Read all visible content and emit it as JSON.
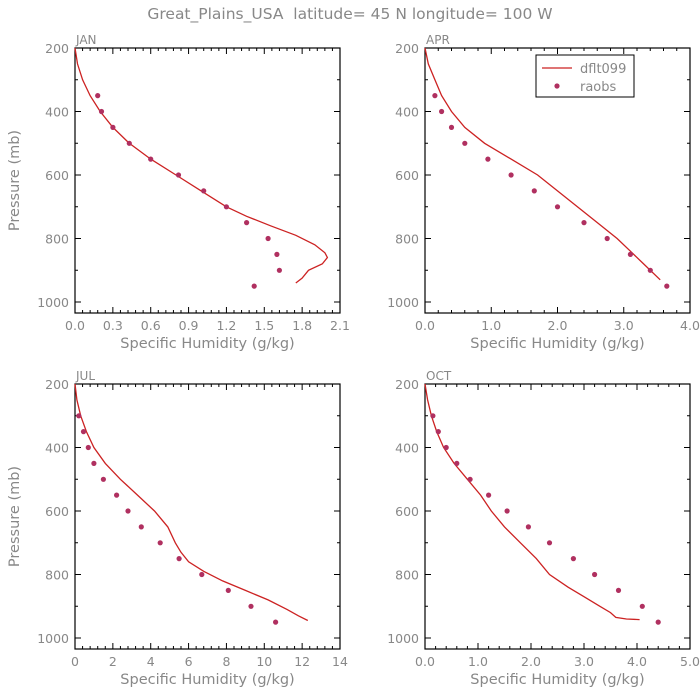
{
  "title": "Great_Plains_USA  latitude= 45 N longitude= 100 W",
  "colors": {
    "model": "#cc2222",
    "obs": "#b03060",
    "text": "#888888"
  },
  "legend": {
    "position": "top-right",
    "model_label": "dflt099",
    "obs_label": "raobs"
  },
  "chart_data": [
    {
      "type": "line",
      "panel": "JAN",
      "xlabel": "Specific Humidity (g/kg)",
      "ylabel": "Pressure (mb)",
      "xlim": [
        0,
        2.1
      ],
      "ylim": [
        1000,
        200
      ],
      "xticks": [
        "0.0",
        "0.3",
        "0.6",
        "0.9",
        "1.2",
        "1.5",
        "1.8",
        "2.1"
      ],
      "yticks": [
        "200",
        "400",
        "600",
        "800",
        "1000"
      ],
      "series": [
        {
          "name": "dflt099",
          "kind": "line",
          "x": [
            0.0,
            0.02,
            0.06,
            0.12,
            0.2,
            0.3,
            0.43,
            0.6,
            0.8,
            1.0,
            1.2,
            1.36,
            1.55,
            1.75,
            1.9,
            1.98,
            2.0,
            1.96,
            1.85,
            1.8,
            1.75
          ],
          "y": [
            200,
            250,
            300,
            350,
            400,
            450,
            500,
            550,
            600,
            650,
            700,
            730,
            760,
            790,
            820,
            845,
            860,
            880,
            900,
            925,
            940
          ]
        },
        {
          "name": "raobs",
          "kind": "scatter",
          "x": [
            0.18,
            0.21,
            0.3,
            0.43,
            0.6,
            0.82,
            1.02,
            1.2,
            1.36,
            1.53,
            1.6,
            1.62,
            1.42
          ],
          "y": [
            350,
            400,
            450,
            500,
            550,
            600,
            650,
            700,
            750,
            800,
            850,
            900,
            950
          ]
        }
      ]
    },
    {
      "type": "line",
      "panel": "APR",
      "xlabel": "Specific Humidity (g/kg)",
      "ylabel": "",
      "xlim": [
        0,
        4.0
      ],
      "ylim": [
        1000,
        200
      ],
      "xticks": [
        "0.0",
        "1.0",
        "2.0",
        "3.0",
        "4.0"
      ],
      "yticks": [
        "200",
        "400",
        "600",
        "800",
        "1000"
      ],
      "series": [
        {
          "name": "dflt099",
          "kind": "line",
          "x": [
            0.0,
            0.05,
            0.15,
            0.25,
            0.4,
            0.6,
            0.9,
            1.3,
            1.7,
            2.0,
            2.3,
            2.6,
            2.9,
            3.1,
            3.3,
            3.55
          ],
          "y": [
            200,
            250,
            300,
            350,
            400,
            450,
            500,
            550,
            600,
            650,
            700,
            750,
            800,
            840,
            880,
            930
          ]
        },
        {
          "name": "raobs",
          "kind": "scatter",
          "x": [
            0.15,
            0.25,
            0.4,
            0.6,
            0.95,
            1.3,
            1.65,
            2.0,
            2.4,
            2.75,
            3.1,
            3.4,
            3.65
          ],
          "y": [
            350,
            400,
            450,
            500,
            550,
            600,
            650,
            700,
            750,
            800,
            850,
            900,
            950
          ]
        }
      ]
    },
    {
      "type": "line",
      "panel": "JUL",
      "xlabel": "Specific Humidity (g/kg)",
      "ylabel": "Pressure (mb)",
      "xlim": [
        0,
        14
      ],
      "ylim": [
        1000,
        200
      ],
      "xticks": [
        "0",
        "2",
        "4",
        "6",
        "8",
        "10",
        "12",
        "14"
      ],
      "yticks": [
        "200",
        "400",
        "600",
        "800",
        "1000"
      ],
      "series": [
        {
          "name": "dflt099",
          "kind": "line",
          "x": [
            0.0,
            0.1,
            0.3,
            0.6,
            1.0,
            1.6,
            2.4,
            3.3,
            4.2,
            4.9,
            5.3,
            5.6,
            6.0,
            6.8,
            7.8,
            9.0,
            10.2,
            11.2,
            11.8,
            12.3
          ],
          "y": [
            200,
            250,
            300,
            350,
            400,
            450,
            500,
            550,
            600,
            650,
            700,
            730,
            760,
            790,
            820,
            850,
            880,
            910,
            930,
            945
          ]
        },
        {
          "name": "raobs",
          "kind": "scatter",
          "x": [
            0.2,
            0.45,
            0.7,
            1.0,
            1.5,
            2.2,
            2.8,
            3.5,
            4.5,
            5.5,
            6.7,
            8.1,
            9.3,
            10.6
          ],
          "y": [
            300,
            350,
            400,
            450,
            500,
            550,
            600,
            650,
            700,
            750,
            800,
            850,
            900,
            950
          ]
        }
      ]
    },
    {
      "type": "line",
      "panel": "OCT",
      "xlabel": "Specific Humidity (g/kg)",
      "ylabel": "",
      "xlim": [
        0,
        5.0
      ],
      "ylim": [
        1000,
        200
      ],
      "xticks": [
        "0.0",
        "1.0",
        "2.0",
        "3.0",
        "4.0",
        "5.0"
      ],
      "yticks": [
        "200",
        "400",
        "600",
        "800",
        "1000"
      ],
      "series": [
        {
          "name": "dflt099",
          "kind": "line",
          "x": [
            0.0,
            0.05,
            0.12,
            0.22,
            0.35,
            0.55,
            0.8,
            1.05,
            1.25,
            1.5,
            1.8,
            2.1,
            2.35,
            2.7,
            3.0,
            3.3,
            3.5,
            3.6,
            3.8,
            4.05
          ],
          "y": [
            200,
            250,
            300,
            350,
            400,
            450,
            500,
            550,
            600,
            650,
            700,
            750,
            800,
            840,
            870,
            900,
            920,
            935,
            940,
            942
          ]
        },
        {
          "name": "raobs",
          "kind": "scatter",
          "x": [
            0.15,
            0.25,
            0.4,
            0.6,
            0.85,
            1.2,
            1.55,
            1.95,
            2.35,
            2.8,
            3.2,
            3.65,
            4.1,
            4.4
          ],
          "y": [
            300,
            350,
            400,
            450,
            500,
            550,
            600,
            650,
            700,
            750,
            800,
            850,
            900,
            950
          ]
        }
      ]
    }
  ]
}
